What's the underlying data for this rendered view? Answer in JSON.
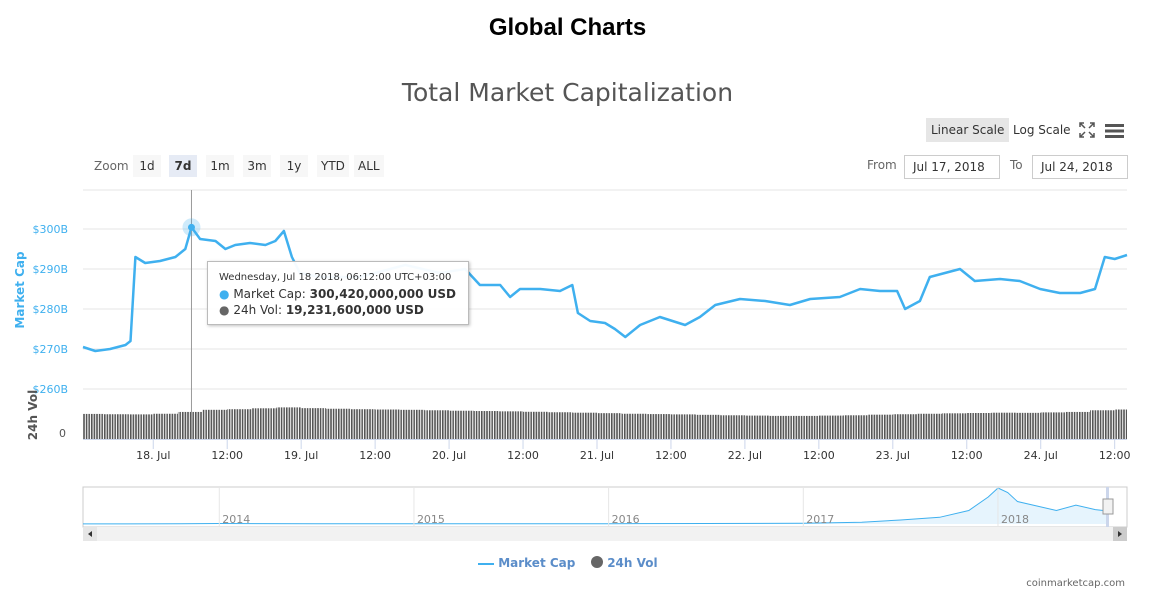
{
  "page_title": "Global Charts",
  "chart_title": "Total Market Capitalization",
  "scale": {
    "linear": "Linear Scale",
    "log": "Log Scale",
    "active": "linear"
  },
  "zoom": {
    "label": "Zoom",
    "buttons": [
      "1d",
      "7d",
      "1m",
      "3m",
      "1y",
      "YTD",
      "ALL"
    ],
    "active": "7d"
  },
  "range": {
    "from_label": "From",
    "from": "Jul 17, 2018",
    "to_label": "To",
    "to": "Jul 24, 2018"
  },
  "tooltip": {
    "header": "Wednesday, Jul 18 2018, 06:12:00 UTC+03:00",
    "mc_label": "Market Cap: ",
    "mc_value": "300,420,000,000 USD",
    "vol_label": "24h Vol: ",
    "vol_value": "19,231,600,000 USD"
  },
  "legend": {
    "market_cap": "Market Cap",
    "vol": "24h Vol"
  },
  "credit": "coinmarketcap.com",
  "colors": {
    "market_cap": "#3fb0ef",
    "volume": "#555555",
    "axis_label": "#3fb0ef",
    "navigator_fill": "#e6f4fd"
  },
  "chart_data": {
    "type": "line",
    "title": "Total Market Capitalization",
    "x_unit": "hours since Jul 17 2018 00:00",
    "xlim": [
      12.6,
      182
    ],
    "x_ticks": [
      {
        "h": 24,
        "label": "18. Jul"
      },
      {
        "h": 36,
        "label": "12:00"
      },
      {
        "h": 48,
        "label": "19. Jul"
      },
      {
        "h": 60,
        "label": "12:00"
      },
      {
        "h": 72,
        "label": "20. Jul"
      },
      {
        "h": 84,
        "label": "12:00"
      },
      {
        "h": 96,
        "label": "21. Jul"
      },
      {
        "h": 108,
        "label": "12:00"
      },
      {
        "h": 120,
        "label": "22. Jul"
      },
      {
        "h": 132,
        "label": "12:00"
      },
      {
        "h": 144,
        "label": "23. Jul"
      },
      {
        "h": 156,
        "label": "12:00"
      },
      {
        "h": 168,
        "label": "24. Jul"
      },
      {
        "h": 180,
        "label": "12:00"
      }
    ],
    "y_axis": {
      "label": "Market Cap",
      "ylim": [
        260,
        300
      ],
      "ticks": [
        {
          "v": 300,
          "label": "$300B"
        },
        {
          "v": 290,
          "label": "$290B"
        },
        {
          "v": 280,
          "label": "$280B"
        },
        {
          "v": 270,
          "label": "$270B"
        },
        {
          "v": 260,
          "label": "$260B"
        }
      ]
    },
    "vol_axis": {
      "label": "24h Vol",
      "zero_label": "0",
      "ylim": [
        0,
        25
      ]
    },
    "series": [
      {
        "name": "Market Cap",
        "unit": "B USD",
        "x": [
          12.6,
          14.6,
          17.0,
          19.5,
          20.3,
          21.1,
          22.7,
          25.1,
          27.6,
          29.2,
          30.2,
          31.6,
          34.1,
          35.7,
          37.3,
          39.7,
          42.2,
          43.8,
          45.2,
          46.5,
          47.8,
          51.1,
          57.6,
          64.9,
          70.5,
          74.6,
          77.0,
          80.3,
          81.9,
          83.5,
          86.8,
          90.0,
          92.0,
          92.9,
          94.9,
          97.3,
          98.9,
          100.6,
          103.0,
          106.2,
          110.3,
          112.7,
          115.2,
          119.2,
          123.3,
          127.3,
          130.6,
          135.4,
          138.7,
          141.9,
          144.7,
          146.0,
          148.4,
          150.0,
          154.9,
          157.3,
          161.4,
          164.6,
          167.9,
          171.1,
          174.4,
          176.8,
          178.4,
          180.0,
          182.0
        ],
        "values": [
          270.5,
          269.5,
          270,
          271,
          272,
          293,
          291.5,
          292,
          293,
          295,
          300.42,
          297.5,
          297,
          295,
          296,
          296.5,
          296,
          297,
          299.5,
          293,
          289,
          288,
          288,
          291,
          289,
          290,
          286,
          286,
          283,
          285,
          285,
          284.5,
          286,
          279,
          277,
          276.5,
          275,
          273,
          276,
          278,
          276,
          278,
          281,
          282.5,
          282,
          281,
          282.5,
          283,
          285,
          284.5,
          284.5,
          280,
          282,
          288,
          290,
          287,
          287.5,
          287,
          285,
          284,
          284,
          285,
          293,
          292.5,
          293.5
        ]
      },
      {
        "name": "24h Vol",
        "unit": "B USD",
        "x": [
          12.6,
          16,
          20,
          24,
          28,
          32,
          36,
          40,
          44,
          48,
          52,
          56,
          60,
          64,
          68,
          72,
          76,
          80,
          84,
          88,
          92,
          96,
          100,
          104,
          108,
          112,
          116,
          120,
          124,
          128,
          132,
          136,
          140,
          144,
          148,
          152,
          156,
          160,
          164,
          168,
          172,
          176,
          180
        ],
        "values": [
          16.5,
          16.3,
          16.2,
          16.6,
          17.8,
          19.2,
          19.6,
          20.2,
          20.8,
          20.3,
          19.9,
          19.6,
          19.4,
          19.2,
          18.9,
          18.6,
          18.4,
          18.2,
          17.9,
          17.6,
          17.3,
          17.0,
          16.6,
          16.4,
          16.2,
          15.9,
          15.6,
          15.4,
          15.2,
          15.2,
          15.4,
          15.6,
          16.0,
          16.3,
          16.6,
          16.9,
          17.1,
          17.3,
          17.2,
          17.5,
          17.8,
          18.9,
          19.4
        ]
      }
    ],
    "navigator": {
      "x_ticks": [
        "2014",
        "2015",
        "2016",
        "2017",
        "2018"
      ],
      "years": [
        2013.3,
        2013.8,
        2014.0,
        2014.5,
        2015.0,
        2015.5,
        2016.0,
        2016.5,
        2017.0,
        2017.3,
        2017.5,
        2017.7,
        2017.85,
        2017.95,
        2018.0,
        2018.05,
        2018.1,
        2018.2,
        2018.3,
        2018.4,
        2018.5,
        2018.56
      ],
      "values": [
        1.5,
        4,
        10,
        7,
        4,
        4,
        7,
        10,
        18,
        40,
        90,
        150,
        300,
        600,
        800,
        700,
        500,
        400,
        300,
        420,
        320,
        290
      ]
    },
    "legend": "bottom-center"
  }
}
